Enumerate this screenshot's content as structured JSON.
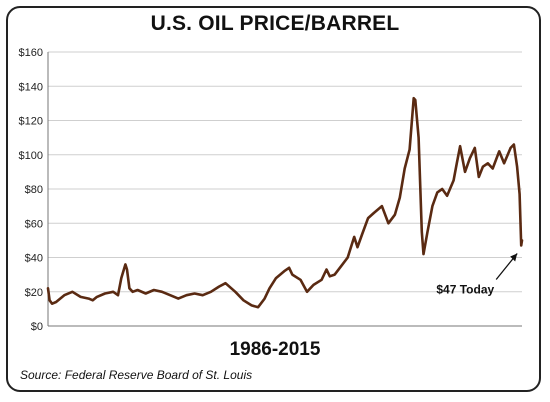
{
  "chart_data": {
    "type": "line",
    "title": "U.S. OIL PRICE/BARREL",
    "subtitle": "1986-2015",
    "source": "Source: Federal Reserve Board of St. Louis",
    "xlabel": "",
    "ylabel": "",
    "ylim": [
      0,
      160
    ],
    "xlim": [
      1986.0,
      2015.1
    ],
    "y_ticks": [
      "$0",
      "$20",
      "$40",
      "$60",
      "$80",
      "$100",
      "$120",
      "$140",
      "$160"
    ],
    "grid": "horizontal",
    "line_color": "#5a2a12",
    "series": [
      {
        "name": "",
        "x": [
          1986.0,
          1986.1,
          1986.25,
          1986.5,
          1986.75,
          1987.0,
          1987.5,
          1988.0,
          1988.5,
          1988.75,
          1989.0,
          1989.5,
          1990.0,
          1990.3,
          1990.5,
          1990.75,
          1990.85,
          1991.0,
          1991.2,
          1991.5,
          1992.0,
          1992.5,
          1993.0,
          1993.5,
          1994.0,
          1994.5,
          1995.0,
          1995.5,
          1996.0,
          1996.5,
          1996.9,
          1997.5,
          1998.0,
          1998.5,
          1998.9,
          1999.3,
          1999.6,
          2000.0,
          2000.5,
          2000.8,
          2001.0,
          2001.5,
          2001.9,
          2002.3,
          2002.8,
          2003.1,
          2003.3,
          2003.6,
          2004.0,
          2004.4,
          2004.8,
          2005.0,
          2005.3,
          2005.65,
          2006.0,
          2006.5,
          2006.9,
          2007.3,
          2007.6,
          2007.9,
          2008.2,
          2008.45,
          2008.55,
          2008.75,
          2008.95,
          2009.05,
          2009.3,
          2009.6,
          2009.9,
          2010.2,
          2010.5,
          2010.9,
          2011.1,
          2011.3,
          2011.6,
          2011.9,
          2012.2,
          2012.45,
          2012.7,
          2013.0,
          2013.3,
          2013.7,
          2014.0,
          2014.4,
          2014.6,
          2014.8,
          2014.95,
          2015.05,
          2015.1
        ],
        "values": [
          22,
          15,
          13,
          14,
          16,
          18,
          20,
          17,
          16,
          15,
          17,
          19,
          20,
          18,
          28,
          36,
          33,
          22,
          20,
          21,
          19,
          21,
          20,
          18,
          16,
          18,
          19,
          18,
          20,
          23,
          25,
          20,
          15,
          12,
          11,
          16,
          22,
          28,
          32,
          34,
          30,
          27,
          20,
          24,
          27,
          33,
          29,
          30,
          35,
          40,
          52,
          46,
          54,
          63,
          66,
          70,
          60,
          65,
          75,
          92,
          103,
          133,
          132,
          110,
          55,
          42,
          55,
          70,
          78,
          80,
          76,
          85,
          95,
          105,
          90,
          98,
          104,
          87,
          93,
          95,
          92,
          102,
          95,
          104,
          106,
          93,
          77,
          47,
          50
        ]
      }
    ],
    "annotations": [
      {
        "text": "$47 Today",
        "x": 2015.05,
        "y": 47
      }
    ]
  }
}
